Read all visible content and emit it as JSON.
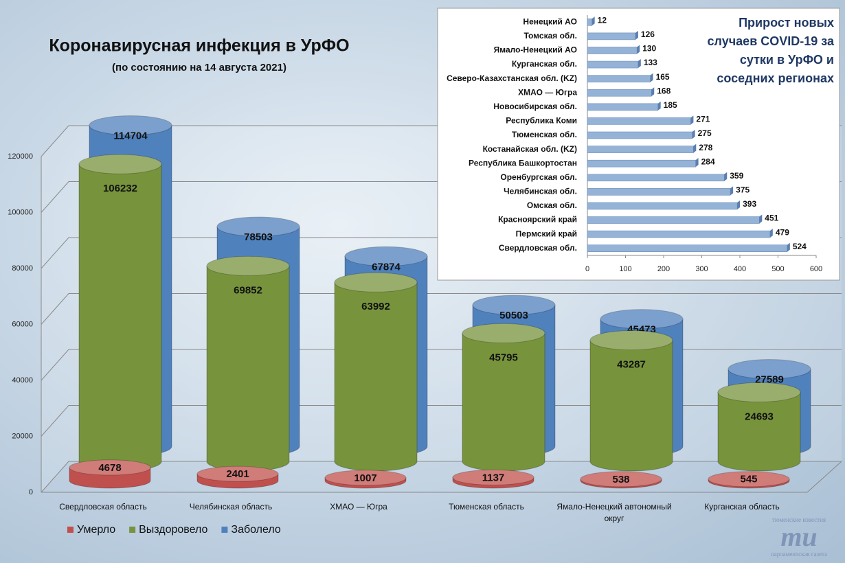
{
  "chart_data": [
    {
      "type": "cylinder",
      "title": "Коронавирусная инфекция в УрФО",
      "subtitle": "(по состоянию на 14 августа 2021)",
      "categories": [
        "Свердловская область",
        "Челябинская область",
        "ХМАО — Югра",
        "Тюменская область",
        "Ямало-Ненецкий автономный округ",
        "Курганская область"
      ],
      "series": [
        {
          "name": "Умерло",
          "color": "#c0504d",
          "values": [
            4678,
            2401,
            1007,
            1137,
            538,
            545
          ]
        },
        {
          "name": "Выздоровело",
          "color": "#77933c",
          "values": [
            106232,
            69852,
            63992,
            45795,
            43287,
            24693
          ]
        },
        {
          "name": "Заболело",
          "color": "#4f81bd",
          "values": [
            114704,
            78503,
            67874,
            50503,
            45473,
            27589
          ]
        }
      ],
      "ylim": [
        0,
        120000
      ],
      "yticks": [
        0,
        20000,
        40000,
        60000,
        80000,
        100000,
        120000
      ],
      "grid": true,
      "legend": "bottom-left"
    },
    {
      "type": "hbar",
      "title": "Прирост новых случаев COVID-19 за сутки в УрФО и соседних регионах",
      "categories": [
        "Ненецкий АО",
        "Томская обл.",
        "Ямало-Ненецкий АО",
        "Курганская обл.",
        "Северо-Казахстанская обл. (KZ)",
        "ХМАО — Югра",
        "Новосибирская обл.",
        "Республика Коми",
        "Тюменская обл.",
        "Костанайская обл. (KZ)",
        "Республика Башкортостан",
        "Оренбургская обл.",
        "Челябинская обл.",
        "Омская обл.",
        "Красноярский край",
        "Пермский край",
        "Свердловская обл."
      ],
      "values": [
        12,
        126,
        130,
        133,
        165,
        168,
        185,
        271,
        275,
        278,
        284,
        359,
        375,
        393,
        451,
        479,
        524
      ],
      "color": "#95b3d7",
      "xlim": [
        0,
        600
      ],
      "xticks": [
        0,
        100,
        200,
        300,
        400,
        500,
        600
      ]
    }
  ],
  "logo": {
    "top": "тюменские известия",
    "mark": "ти",
    "bottom": "парламентская газета"
  }
}
